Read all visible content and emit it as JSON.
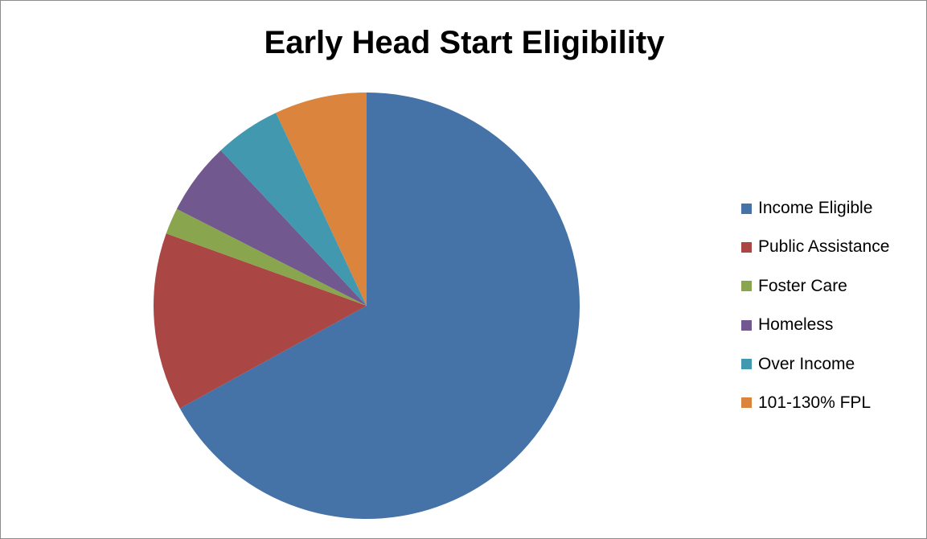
{
  "chart_data": {
    "type": "pie",
    "title": "Early Head Start Eligibility",
    "categories": [
      "Income Eligible",
      "Public Assistance",
      "Foster Care",
      "Homeless",
      "Over Income",
      "101-130% FPL"
    ],
    "values": [
      67,
      13.5,
      2,
      5.5,
      5,
      7
    ],
    "unit": "percent of total (estimated)",
    "colors": [
      "#4572A7",
      "#AA4643",
      "#89A54E",
      "#71588F",
      "#4198AF",
      "#DB843D"
    ],
    "start_angle": "12 o'clock, clockwise",
    "legend_position": "right"
  }
}
